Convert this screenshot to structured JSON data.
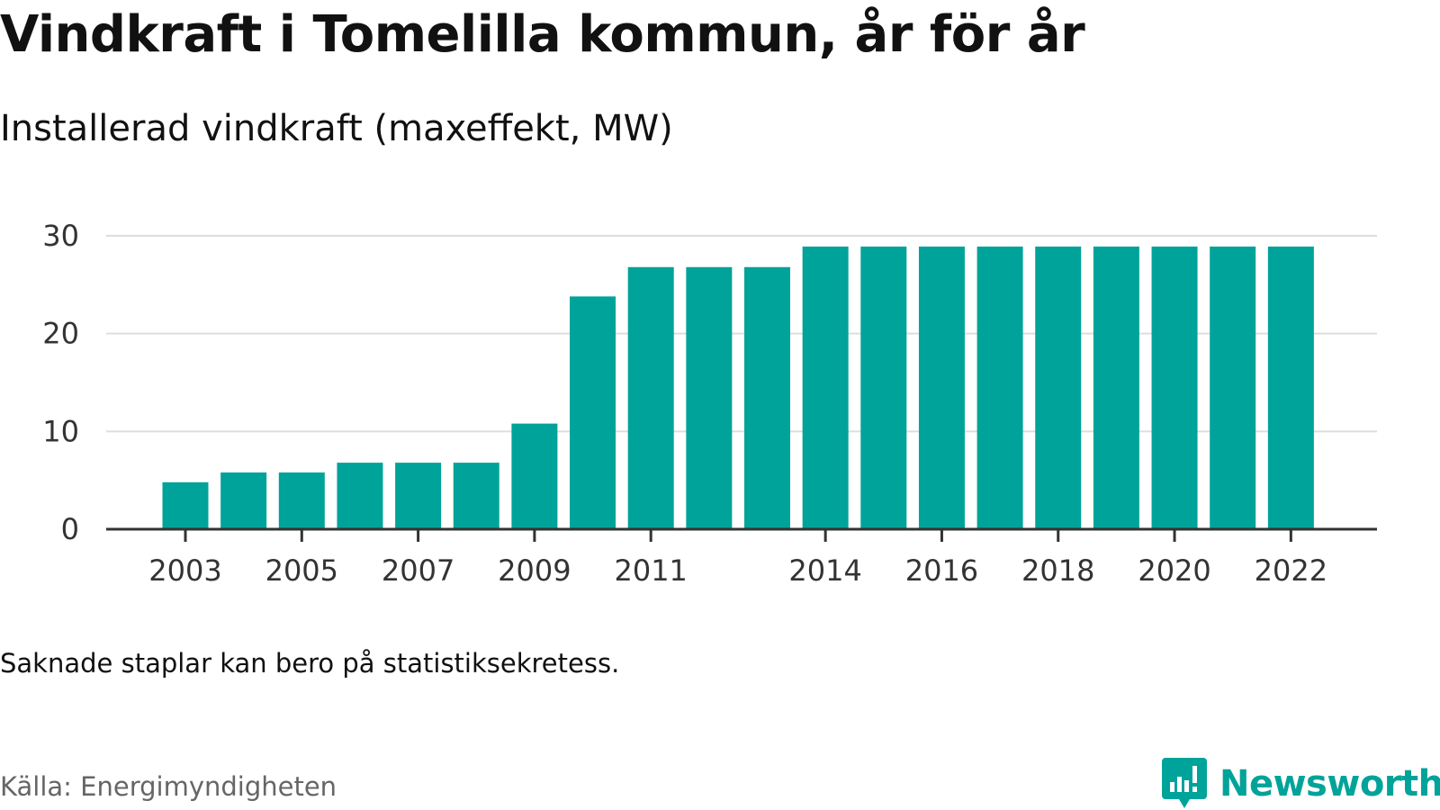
{
  "title": "Vindkraft i Tomelilla kommun, år för år",
  "subtitle": "Installerad vindkraft (maxeffekt, MW)",
  "note": "Saknade staplar kan bero på statistiksekretess.",
  "source": "Källa: Energimyndigheten",
  "brand": {
    "name": "Newsworthy",
    "icon": "newsworthy-logo-icon",
    "color": "#00a39a"
  },
  "colors": {
    "bar": "#00a39a",
    "grid": "#dddddd",
    "axis": "#333333"
  },
  "chart_data": {
    "type": "bar",
    "categories": [
      "2003",
      "2004",
      "2005",
      "2006",
      "2007",
      "2008",
      "2009",
      "2010",
      "2011",
      "2012",
      "2013",
      "2014",
      "2015",
      "2016",
      "2017",
      "2018",
      "2019",
      "2020",
      "2021",
      "2022"
    ],
    "values": [
      4.8,
      5.8,
      5.8,
      6.8,
      6.8,
      6.8,
      10.8,
      23.8,
      26.8,
      26.8,
      26.8,
      28.9,
      28.9,
      28.9,
      28.9,
      28.9,
      28.9,
      28.9,
      28.9,
      28.9
    ],
    "x_tick_labels": [
      "2003",
      "2005",
      "2007",
      "2009",
      "2011",
      "2014",
      "2016",
      "2018",
      "2020",
      "2022"
    ],
    "y_ticks": [
      0,
      10,
      20,
      30
    ],
    "ylim": [
      0,
      30
    ],
    "grid": true,
    "xlabel": "",
    "ylabel": ""
  }
}
